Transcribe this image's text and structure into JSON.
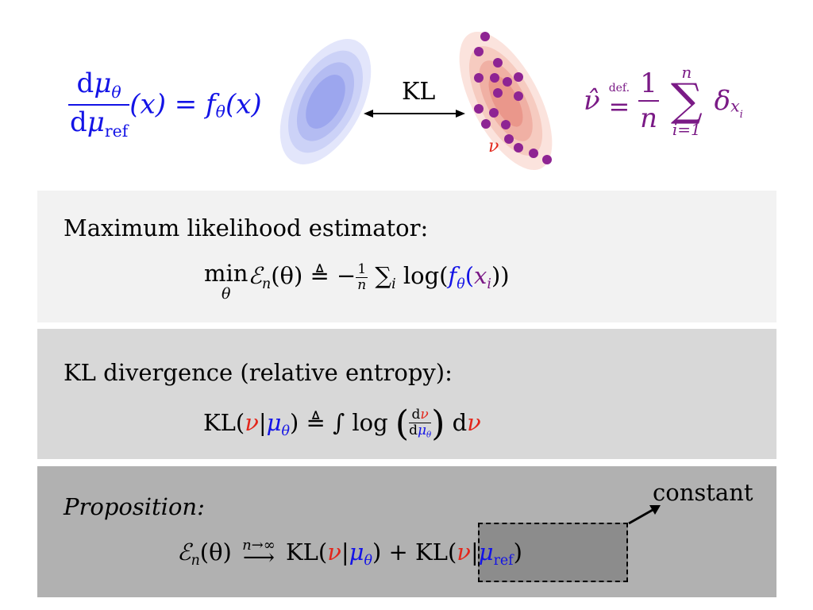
{
  "top": {
    "blue_formula": {
      "num_d": "d",
      "num_mu": "μ",
      "num_sub": "θ",
      "den_d": "d",
      "den_mu": "μ",
      "den_sub": "ref",
      "rhs": "(x) = f",
      "rhs_sub": "θ",
      "rhs_end": "(x)"
    },
    "kl_label": "KL",
    "nu_label": "ν",
    "purple_formula": {
      "lhs": "ν̂",
      "defeq_small": "def.",
      "defeq": "=",
      "frac_num": "1",
      "frac_den": "n",
      "sum_top": "n",
      "sum_symbol": "∑",
      "sum_bottom": "i=1",
      "delta": "δ",
      "delta_sub": "x",
      "delta_subsub": "i"
    }
  },
  "mle": {
    "heading": "Maximum likelihood estimator:",
    "min": "min",
    "min_under": "θ",
    "E": "ℰ",
    "E_sub": "n",
    "lhs_arg": "(θ) ≜ −",
    "frac_num": "1",
    "frac_den": "n",
    "sum": "∑",
    "sum_sub": "i",
    "log": "log(",
    "f": "f",
    "f_sub": "θ",
    "x_open": "(",
    "x": "x",
    "x_sub": "i",
    "close": "))"
  },
  "kl": {
    "heading": "KL divergence (relative entropy):",
    "kl": "KL(",
    "nu": "ν",
    "bar": "|",
    "mu": "μ",
    "mu_sub": "θ",
    "mid": ") ≜ ∫ log",
    "lparen": "(",
    "rparen": ")",
    "frac_num_d": "d",
    "frac_num_nu": "ν",
    "frac_den_d": "d",
    "frac_den_mu": "μ",
    "frac_den_sub": "θ",
    "d": "d",
    "d_nu": "ν"
  },
  "prop": {
    "heading": "Proposition:",
    "E": "ℰ",
    "E_sub": "n",
    "arg": "(θ)",
    "arrow_over": "n→∞",
    "arrow": "⟶",
    "kl1": "KL(",
    "nu1": "ν",
    "bar1": "|",
    "mu1": "μ",
    "mu1_sub": "θ",
    "close1": ") +",
    "kl2": "KL(",
    "nu2": "ν",
    "bar2": "|",
    "mu2": "μ",
    "mu2_sub": "ref",
    "close2": ")",
    "constant_label": "constant"
  },
  "colors": {
    "blue": "#1313e6",
    "red": "#e3261b",
    "purple": "#7a1a86",
    "panel_light": "#f2f2f2",
    "panel_mid": "#d8d8d8",
    "panel_dark": "#b1b1b1"
  }
}
